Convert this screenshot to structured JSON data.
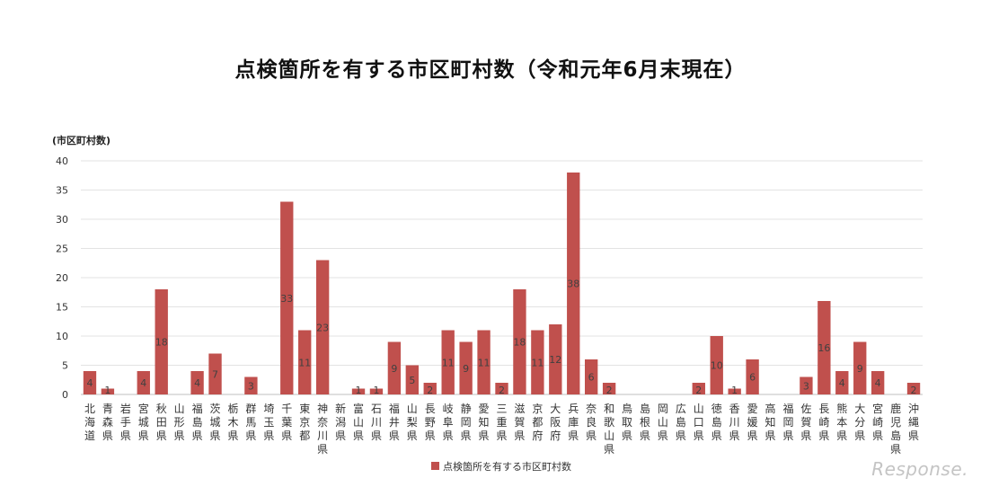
{
  "chart_data": {
    "type": "bar",
    "title": "点検箇所を有する市区町村数（令和元年6月末現在）",
    "ylabel": "(市区町村数)",
    "xlabel": "",
    "ylim": [
      0,
      40
    ],
    "yticks": [
      0,
      5,
      10,
      15,
      20,
      25,
      30,
      35,
      40
    ],
    "grid": true,
    "legend_position": "bottom-center",
    "bar_color": "#c0504d",
    "categories": [
      "北海道",
      "青森県",
      "岩手県",
      "宮城県",
      "秋田県",
      "山形県",
      "福島県",
      "茨城県",
      "栃木県",
      "群馬県",
      "埼玉県",
      "千葉県",
      "東京都",
      "神奈川県",
      "新潟県",
      "富山県",
      "石川県",
      "福井県",
      "山梨県",
      "長野県",
      "岐阜県",
      "静岡県",
      "愛知県",
      "三重県",
      "滋賀県",
      "京都府",
      "大阪府",
      "兵庫県",
      "奈良県",
      "和歌山県",
      "鳥取県",
      "島根県",
      "岡山県",
      "広島県",
      "山口県",
      "徳島県",
      "香川県",
      "愛媛県",
      "高知県",
      "福岡県",
      "佐賀県",
      "長崎県",
      "熊本県",
      "大分県",
      "宮崎県",
      "鹿児島県",
      "沖縄県"
    ],
    "series": [
      {
        "name": "点検箇所を有する市区町村数",
        "values": [
          4,
          1,
          0,
          4,
          18,
          0,
          4,
          7,
          0,
          3,
          0,
          33,
          11,
          23,
          0,
          1,
          1,
          9,
          5,
          2,
          11,
          9,
          11,
          2,
          18,
          11,
          12,
          38,
          6,
          2,
          0,
          0,
          0,
          0,
          2,
          10,
          1,
          6,
          0,
          0,
          3,
          16,
          4,
          9,
          4,
          0,
          2
        ]
      }
    ]
  },
  "watermark": "Response."
}
